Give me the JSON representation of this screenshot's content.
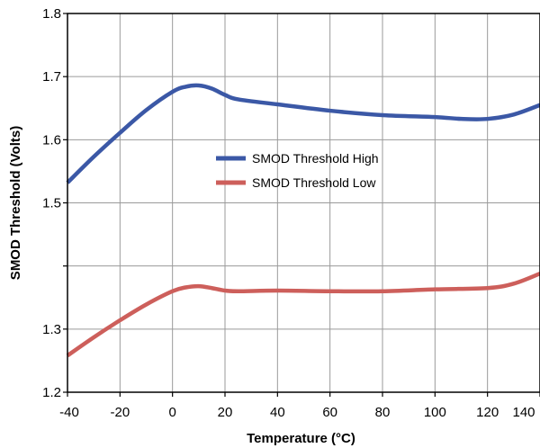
{
  "chart_data": {
    "type": "line",
    "title": "",
    "xlabel": "Temperature (°C)",
    "ylabel": "SMOD Threshold (Volts)",
    "xlim": [
      -40,
      140
    ],
    "ylim": [
      1.2,
      1.8
    ],
    "x_ticks": [
      -40,
      -20,
      0,
      20,
      40,
      60,
      80,
      100,
      120,
      140
    ],
    "x_tick_labels": [
      "-40",
      "-20",
      "0",
      "20",
      "40",
      "60",
      "80",
      "100",
      "120",
      "140"
    ],
    "y_ticks": [
      1.2,
      1.3,
      1.4,
      1.5,
      1.6,
      1.7,
      1.8
    ],
    "y_tick_labels": [
      "1.2",
      "1.3",
      "",
      "1.5",
      "1.6",
      "1.7",
      "1.8"
    ],
    "grid": true,
    "legend_position": "center",
    "series": [
      {
        "name": "SMOD Threshold High",
        "color": "#3b58a6",
        "x": [
          -40,
          -30,
          -20,
          -10,
          0,
          5,
          10,
          15,
          20,
          25,
          40,
          60,
          80,
          100,
          110,
          120,
          130,
          140
        ],
        "y": [
          1.532,
          1.573,
          1.611,
          1.647,
          1.676,
          1.684,
          1.686,
          1.681,
          1.671,
          1.664,
          1.656,
          1.646,
          1.639,
          1.636,
          1.633,
          1.633,
          1.64,
          1.655
        ]
      },
      {
        "name": "SMOD Threshold Low",
        "color": "#cd5f5b",
        "x": [
          -40,
          -30,
          -20,
          -10,
          0,
          5,
          10,
          15,
          20,
          25,
          40,
          60,
          80,
          100,
          120,
          130,
          140
        ],
        "y": [
          1.258,
          1.287,
          1.314,
          1.339,
          1.36,
          1.366,
          1.368,
          1.365,
          1.361,
          1.36,
          1.361,
          1.36,
          1.36,
          1.363,
          1.365,
          1.372,
          1.388
        ]
      }
    ]
  }
}
